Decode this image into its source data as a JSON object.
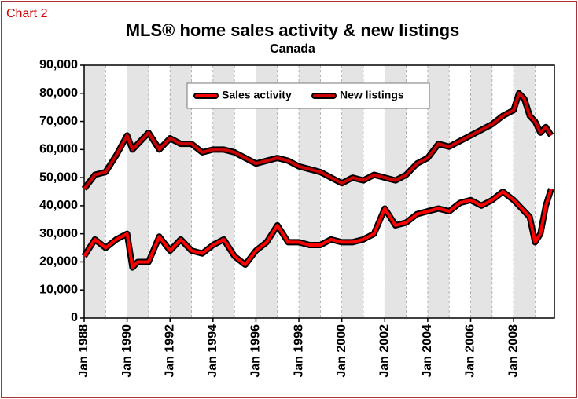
{
  "chart_data": {
    "type": "line",
    "label": "Chart 2",
    "title": "MLS® home sales activity & new listings",
    "subtitle": "Canada",
    "x": [
      1988,
      1988.5,
      1989,
      1989.5,
      1990,
      1990.25,
      1990.5,
      1991,
      1991.5,
      1992,
      1992.5,
      1993,
      1993.5,
      1994,
      1994.5,
      1995,
      1995.5,
      1996,
      1996.5,
      1997,
      1997.5,
      1998,
      1998.5,
      1999,
      1999.5,
      2000,
      2000.5,
      2001,
      2001.5,
      2002,
      2002.5,
      2003,
      2003.5,
      2004,
      2004.5,
      2005,
      2005.5,
      2006,
      2006.5,
      2007,
      2007.5,
      2008,
      2008.25,
      2008.5,
      2008.75,
      2009,
      2009.25,
      2009.5,
      2009.75
    ],
    "series": [
      {
        "name": "Sales activity",
        "color": "#ff0000",
        "values": [
          22000,
          28000,
          25000,
          28000,
          30000,
          18000,
          20000,
          20000,
          29000,
          24000,
          28000,
          24000,
          23000,
          26000,
          28000,
          22000,
          19000,
          24000,
          27000,
          33000,
          27000,
          27000,
          26000,
          26000,
          28000,
          27000,
          27000,
          28000,
          30000,
          39000,
          33000,
          34000,
          37000,
          38000,
          39000,
          38000,
          41000,
          42000,
          40000,
          42000,
          45000,
          42000,
          40000,
          38000,
          36000,
          27000,
          30000,
          40000,
          46000
        ]
      },
      {
        "name": "New listings",
        "color": "#cc0000",
        "values": [
          46000,
          51000,
          52000,
          58000,
          65000,
          60000,
          62000,
          66000,
          60000,
          64000,
          62000,
          62000,
          59000,
          60000,
          60000,
          59000,
          57000,
          55000,
          56000,
          57000,
          56000,
          54000,
          53000,
          52000,
          50000,
          48000,
          50000,
          49000,
          51000,
          50000,
          49000,
          51000,
          55000,
          57000,
          62000,
          61000,
          63000,
          65000,
          67000,
          69000,
          72000,
          74000,
          80000,
          78000,
          72000,
          70000,
          66000,
          68000,
          65000
        ]
      }
    ],
    "xlim": [
      1988,
      2009.9
    ],
    "xticks": [
      {
        "value": 1988,
        "label": "Jan 1988"
      },
      {
        "value": 1990,
        "label": "Jan 1990"
      },
      {
        "value": 1992,
        "label": "Jan 1992"
      },
      {
        "value": 1994,
        "label": "Jan 1994"
      },
      {
        "value": 1996,
        "label": "Jan 1996"
      },
      {
        "value": 1998,
        "label": "Jan 1998"
      },
      {
        "value": 2000,
        "label": "Jan 2000"
      },
      {
        "value": 2002,
        "label": "Jan 2002"
      },
      {
        "value": 2004,
        "label": "Jan 2004"
      },
      {
        "value": 2006,
        "label": "Jan 2006"
      },
      {
        "value": 2008,
        "label": "Jan 2008"
      }
    ],
    "ylim": [
      0,
      90000
    ],
    "yticks": [
      0,
      {
        "value": 10000,
        "label": "10,000"
      },
      {
        "value": 20000,
        "label": "20,000"
      },
      {
        "value": 30000,
        "label": "30,000"
      },
      {
        "value": 40000,
        "label": "40,000"
      },
      {
        "value": 50000,
        "label": "50,000"
      },
      {
        "value": 60000,
        "label": "60,000"
      },
      {
        "value": 70000,
        "label": "70,000"
      },
      {
        "value": 80000,
        "label": "80,000"
      },
      {
        "value": 90000,
        "label": "90,000"
      }
    ],
    "legend": "top"
  }
}
